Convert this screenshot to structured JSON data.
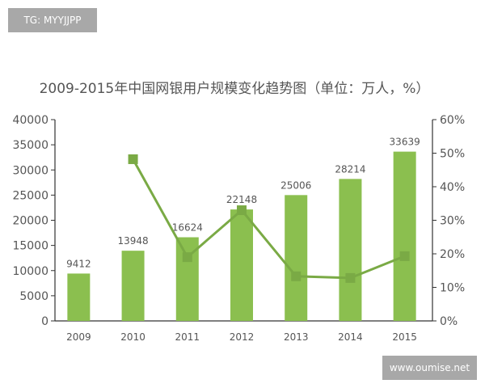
{
  "watermarks": {
    "top_left": "TG: MYYJJPP",
    "bottom_right": "www.oumise.net"
  },
  "chart_data": {
    "type": "bar",
    "title": "2009-2015年中国网银用户规模变化趋势图（单位：万人，%）",
    "categories": [
      "2009",
      "2010",
      "2011",
      "2012",
      "2013",
      "2014",
      "2015"
    ],
    "series": [
      {
        "type": "bar",
        "axis": "left",
        "values": [
          9412,
          13948,
          16624,
          22148,
          25006,
          28214,
          33639
        ],
        "color": "#8bbf4f"
      },
      {
        "type": "line",
        "axis": "right",
        "values": [
          null,
          48.2,
          19.0,
          33.0,
          13.3,
          12.8,
          19.3
        ],
        "color": "#7aaa45"
      }
    ],
    "ylim_left": [
      0,
      40000
    ],
    "yticks_left": [
      "0",
      "5000",
      "10000",
      "15000",
      "20000",
      "25000",
      "30000",
      "35000",
      "40000"
    ],
    "ylim_right": [
      0,
      60
    ],
    "yticks_right": [
      "0%",
      "10%",
      "20%",
      "30%",
      "40%",
      "50%",
      "60%"
    ],
    "grid": false,
    "data_labels": true
  }
}
